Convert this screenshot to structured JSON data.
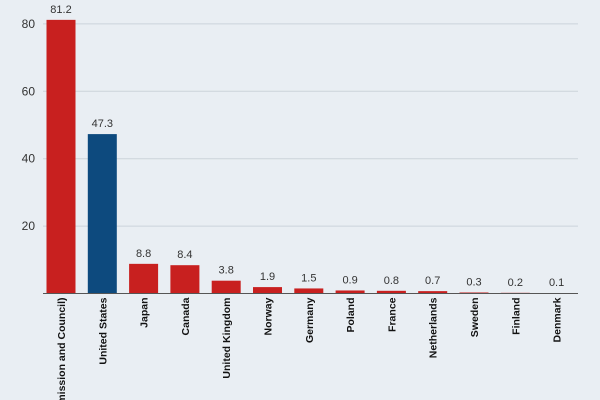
{
  "chart_data": {
    "type": "bar",
    "title": "",
    "xlabel": "",
    "ylabel": "",
    "ylim": [
      0,
      81.2
    ],
    "yticks": [
      20,
      40,
      60,
      80
    ],
    "grid": true,
    "categories": [
      "Commission and Council)",
      "United States",
      "Japan",
      "Canada",
      "United Kingdom",
      "Norway",
      "Germany",
      "Poland",
      "France",
      "Netherlands",
      "Sweden",
      "Finland",
      "Denmark"
    ],
    "category_tick_labels": [
      "nmission and Council)",
      "United States",
      "Japan",
      "Canada",
      "United Kingdom",
      "Norway",
      "Germany",
      "Poland",
      "France",
      "Netherlands",
      "Sweden",
      "Finland",
      "Denmark"
    ],
    "values": [
      81.2,
      47.3,
      8.8,
      8.4,
      3.8,
      1.9,
      1.5,
      0.9,
      0.8,
      0.7,
      0.3,
      0.2,
      0.1
    ],
    "data_labels": [
      "81.2",
      "47.3",
      "8.8",
      "8.4",
      "3.8",
      "1.9",
      "1.5",
      "0.9",
      "0.8",
      "0.7",
      "0.3",
      "0.2",
      "0.1"
    ],
    "bar_colors": [
      "#c8201f",
      "#0d4a7e",
      "#c8201f",
      "#c8201f",
      "#c8201f",
      "#c8201f",
      "#c8201f",
      "#c8201f",
      "#c8201f",
      "#c8201f",
      "#c8201f",
      "#c8201f",
      "#c8201f"
    ],
    "colors": {
      "default_bar": "#c8201f",
      "highlight_bar": "#0d4a7e",
      "background": "#e9eef3",
      "grid": "#ccd3da"
    }
  }
}
